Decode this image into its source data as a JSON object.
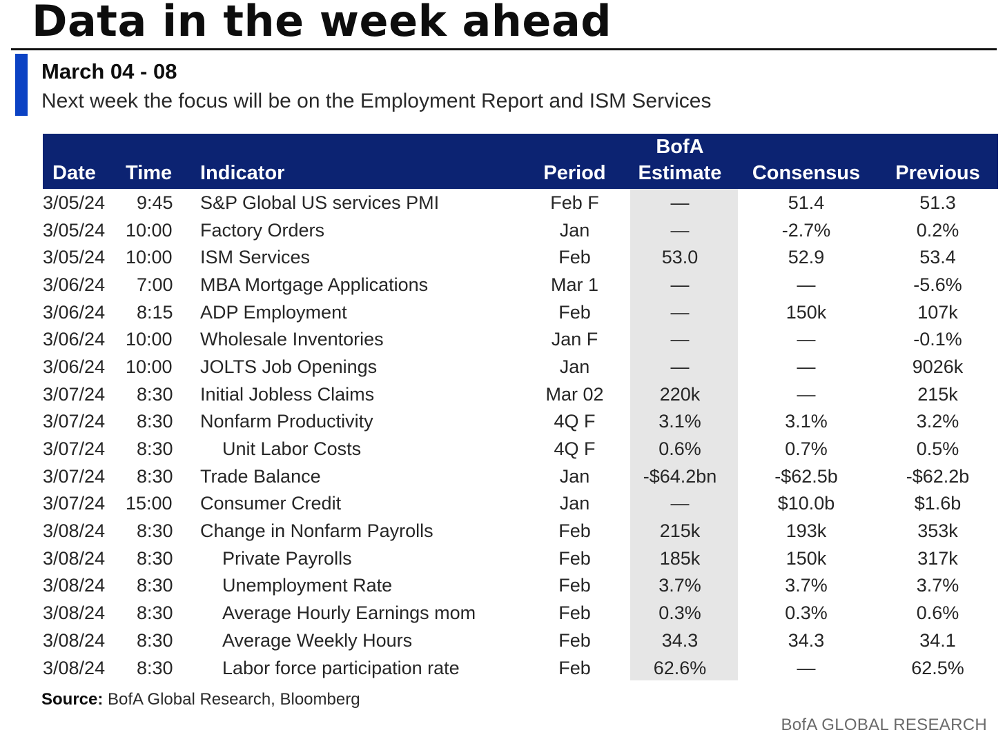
{
  "page": {
    "title": "Data in the week ahead",
    "subtitle": "March 04 - 08",
    "description": "Next week the focus will be on the Employment Report and ISM Services",
    "accent_color": "#0b42c4",
    "header_color": "#0c2372",
    "source_label": "Source:",
    "source_text": " BofA Global Research, Bloomberg",
    "brand": "BofA GLOBAL RESEARCH"
  },
  "table": {
    "headers": {
      "date": "Date",
      "time": "Time",
      "indicator": "Indicator",
      "period": "Period",
      "estimate_line1": "BofA",
      "estimate_line2": "Estimate",
      "consensus": "Consensus",
      "previous": "Previous"
    },
    "rows": [
      {
        "date": "3/05/24",
        "time": "9:45",
        "indicator": "S&P Global US services PMI",
        "indent": false,
        "period": "Feb F",
        "estimate": "—",
        "consensus": "51.4",
        "previous": "51.3"
      },
      {
        "date": "3/05/24",
        "time": "10:00",
        "indicator": "Factory Orders",
        "indent": false,
        "period": "Jan",
        "estimate": "—",
        "consensus": "-2.7%",
        "previous": "0.2%"
      },
      {
        "date": "3/05/24",
        "time": "10:00",
        "indicator": "ISM Services",
        "indent": false,
        "period": "Feb",
        "estimate": "53.0",
        "consensus": "52.9",
        "previous": "53.4"
      },
      {
        "date": "3/06/24",
        "time": "7:00",
        "indicator": "MBA Mortgage Applications",
        "indent": false,
        "period": "Mar 1",
        "estimate": "—",
        "consensus": "—",
        "previous": "-5.6%"
      },
      {
        "date": "3/06/24",
        "time": "8:15",
        "indicator": "ADP Employment",
        "indent": false,
        "period": "Feb",
        "estimate": "—",
        "consensus": "150k",
        "previous": "107k"
      },
      {
        "date": "3/06/24",
        "time": "10:00",
        "indicator": "Wholesale Inventories",
        "indent": false,
        "period": "Jan F",
        "estimate": "—",
        "consensus": "—",
        "previous": "-0.1%"
      },
      {
        "date": "3/06/24",
        "time": "10:00",
        "indicator": "JOLTS Job Openings",
        "indent": false,
        "period": "Jan",
        "estimate": "—",
        "consensus": "—",
        "previous": "9026k"
      },
      {
        "date": "3/07/24",
        "time": "8:30",
        "indicator": "Initial Jobless Claims",
        "indent": false,
        "period": "Mar 02",
        "estimate": "220k",
        "consensus": "—",
        "previous": "215k"
      },
      {
        "date": "3/07/24",
        "time": "8:30",
        "indicator": "Nonfarm Productivity",
        "indent": false,
        "period": "4Q F",
        "estimate": "3.1%",
        "consensus": "3.1%",
        "previous": "3.2%"
      },
      {
        "date": "3/07/24",
        "time": "8:30",
        "indicator": "Unit Labor Costs",
        "indent": true,
        "period": "4Q F",
        "estimate": "0.6%",
        "consensus": "0.7%",
        "previous": "0.5%"
      },
      {
        "date": "3/07/24",
        "time": "8:30",
        "indicator": "Trade Balance",
        "indent": false,
        "period": "Jan",
        "estimate": "-$64.2bn",
        "consensus": "-$62.5b",
        "previous": "-$62.2b"
      },
      {
        "date": "3/07/24",
        "time": "15:00",
        "indicator": "Consumer Credit",
        "indent": false,
        "period": "Jan",
        "estimate": "—",
        "consensus": "$10.0b",
        "previous": "$1.6b"
      },
      {
        "date": "3/08/24",
        "time": "8:30",
        "indicator": "Change in Nonfarm Payrolls",
        "indent": false,
        "period": "Feb",
        "estimate": "215k",
        "consensus": "193k",
        "previous": "353k"
      },
      {
        "date": "3/08/24",
        "time": "8:30",
        "indicator": "Private Payrolls",
        "indent": true,
        "period": "Feb",
        "estimate": "185k",
        "consensus": "150k",
        "previous": "317k"
      },
      {
        "date": "3/08/24",
        "time": "8:30",
        "indicator": "Unemployment Rate",
        "indent": true,
        "period": "Feb",
        "estimate": "3.7%",
        "consensus": "3.7%",
        "previous": "3.7%"
      },
      {
        "date": "3/08/24",
        "time": "8:30",
        "indicator": "Average Hourly Earnings mom",
        "indent": true,
        "period": "Feb",
        "estimate": "0.3%",
        "consensus": "0.3%",
        "previous": "0.6%"
      },
      {
        "date": "3/08/24",
        "time": "8:30",
        "indicator": "Average Weekly Hours",
        "indent": true,
        "period": "Feb",
        "estimate": "34.3",
        "consensus": "34.3",
        "previous": "34.1"
      },
      {
        "date": "3/08/24",
        "time": "8:30",
        "indicator": "Labor force participation rate",
        "indent": true,
        "period": "Feb",
        "estimate": "62.6%",
        "consensus": "—",
        "previous": "62.5%"
      }
    ]
  }
}
